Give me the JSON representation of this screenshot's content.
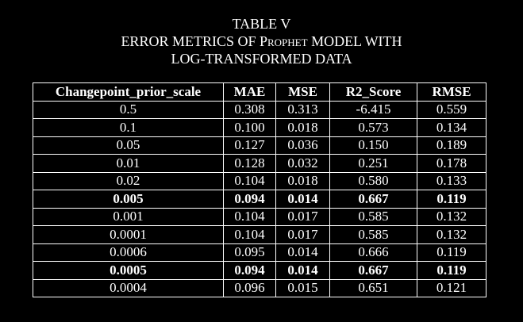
{
  "caption": {
    "line1": "TABLE V",
    "line2": [
      "ERROR METRICS OF ",
      "Prophet",
      " MODEL WITH"
    ],
    "line3": "LOG-TRANSFORMED DATA"
  },
  "table": {
    "columns": [
      "Changepoint_prior_scale",
      "MAE",
      "MSE",
      "R2_Score",
      "RMSE"
    ],
    "rows": [
      [
        "0.5",
        "0.308",
        "0.313",
        "-6.415",
        "0.559"
      ],
      [
        "0.1",
        "0.100",
        "0.018",
        "0.573",
        "0.134"
      ],
      [
        "0.05",
        "0.127",
        "0.036",
        "0.150",
        "0.189"
      ],
      [
        "0.01",
        "0.128",
        "0.032",
        "0.251",
        "0.178"
      ],
      [
        "0.02",
        "0.104",
        "0.018",
        "0.580",
        "0.133"
      ],
      [
        "0.005",
        "0.094",
        "0.014",
        "0.667",
        "0.119"
      ],
      [
        "0.001",
        "0.104",
        "0.017",
        "0.585",
        "0.132"
      ],
      [
        "0.0001",
        "0.104",
        "0.017",
        "0.585",
        "0.132"
      ],
      [
        "0.0006",
        "0.095",
        "0.014",
        "0.666",
        "0.119"
      ],
      [
        "0.0005",
        "0.094",
        "0.014",
        "0.667",
        "0.119"
      ],
      [
        "0.0004",
        "0.096",
        "0.015",
        "0.651",
        "0.121"
      ]
    ]
  }
}
